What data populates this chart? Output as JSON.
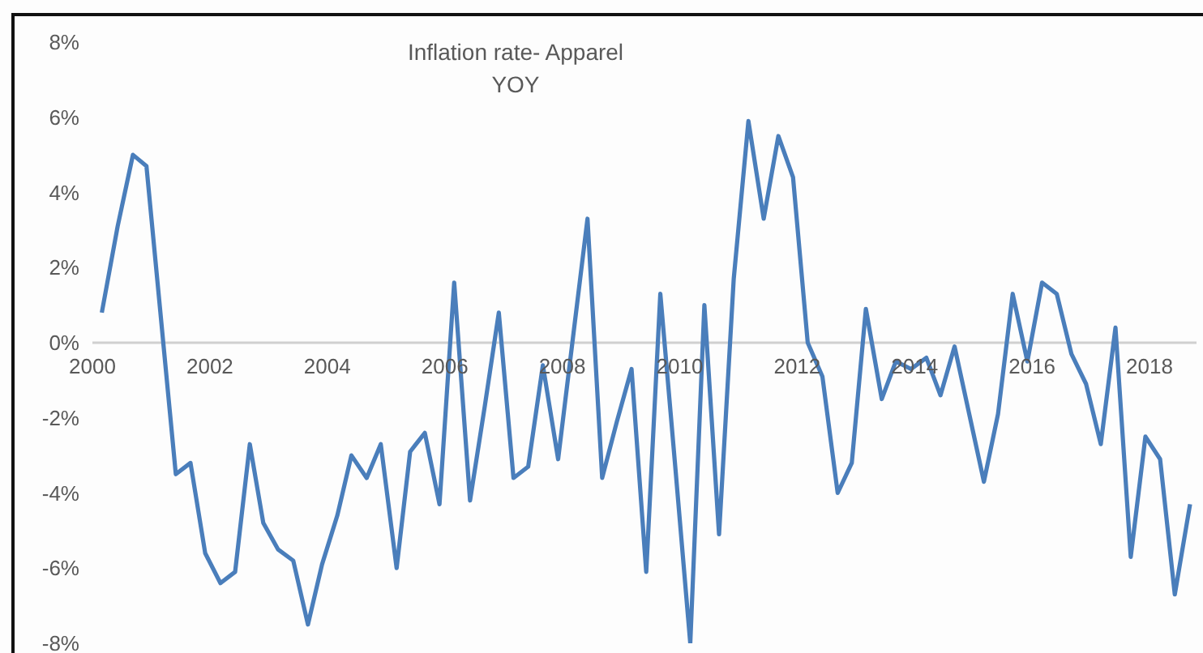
{
  "chart_data": {
    "type": "line",
    "title": "Inflation rate- Apparel",
    "subtitle": "YOY",
    "x": [
      2000.16,
      2000.43,
      2000.69,
      2000.92,
      2001.42,
      2001.67,
      2001.92,
      2002.18,
      2002.43,
      2002.68,
      2002.91,
      2003.16,
      2003.42,
      2003.67,
      2003.91,
      2004.17,
      2004.41,
      2004.67,
      2004.91,
      2005.18,
      2005.41,
      2005.66,
      2005.91,
      2006.16,
      2006.43,
      2006.68,
      2006.92,
      2007.17,
      2007.42,
      2007.67,
      2007.93,
      2008.18,
      2008.43,
      2008.68,
      2008.93,
      2009.18,
      2009.43,
      2009.67,
      2009.93,
      2010.18,
      2010.42,
      2010.67,
      2010.92,
      2011.17,
      2011.43,
      2011.68,
      2011.93,
      2012.18,
      2012.43,
      2012.69,
      2012.93,
      2013.17,
      2013.44,
      2013.68,
      2013.94,
      2014.2,
      2014.44,
      2014.68,
      2014.93,
      2015.18,
      2015.42,
      2015.67,
      2015.92,
      2016.17,
      2016.42,
      2016.67,
      2016.92,
      2017.17,
      2017.42,
      2017.68,
      2017.93,
      2018.18,
      2018.43,
      2018.69
    ],
    "series": [
      {
        "color": "#4a7ebb",
        "values": [
          0.8,
          3.1,
          5.0,
          4.7,
          -3.5,
          -3.2,
          -5.6,
          -6.4,
          -6.1,
          -2.7,
          -4.8,
          -5.5,
          -5.8,
          -7.5,
          -5.9,
          -4.6,
          -3.0,
          -3.6,
          -2.7,
          -6.0,
          -2.9,
          -2.4,
          -4.3,
          1.6,
          -4.2,
          -1.7,
          0.8,
          -3.6,
          -3.3,
          -0.6,
          -3.1,
          0.1,
          3.3,
          -3.6,
          -2.1,
          -0.7,
          -6.1,
          1.3,
          -3.4,
          -8.0,
          1.0,
          -5.1,
          1.7,
          5.9,
          3.3,
          5.5,
          4.4,
          0.0,
          -0.9,
          -4.0,
          -3.2,
          0.9,
          -1.5,
          -0.5,
          -0.7,
          -0.4,
          -1.4,
          -0.1,
          -1.9,
          -3.7,
          -1.9,
          1.3,
          -0.5,
          1.6,
          1.3,
          -0.3,
          -1.1,
          -2.7,
          0.4,
          -5.7,
          -2.5,
          -3.1,
          -6.7,
          -4.3
        ]
      }
    ],
    "xlim": [
      2000,
      2018.8
    ],
    "xticks": [
      2000,
      2002,
      2004,
      2006,
      2008,
      2010,
      2012,
      2014,
      2016,
      2018
    ],
    "ylim": [
      -8,
      8
    ],
    "yticks": [
      {
        "value": -8,
        "label": "-8%"
      },
      {
        "value": -6,
        "label": "-6%"
      },
      {
        "value": -4,
        "label": "-4%"
      },
      {
        "value": -2,
        "label": "-2%"
      },
      {
        "value": 0,
        "label": "0%"
      },
      {
        "value": 2,
        "label": "2%"
      },
      {
        "value": 4,
        "label": "4%"
      },
      {
        "value": 6,
        "label": "6%"
      },
      {
        "value": 8,
        "label": "8%"
      }
    ],
    "grid": false,
    "legend": false,
    "marker": "none",
    "line_style": "solid"
  }
}
